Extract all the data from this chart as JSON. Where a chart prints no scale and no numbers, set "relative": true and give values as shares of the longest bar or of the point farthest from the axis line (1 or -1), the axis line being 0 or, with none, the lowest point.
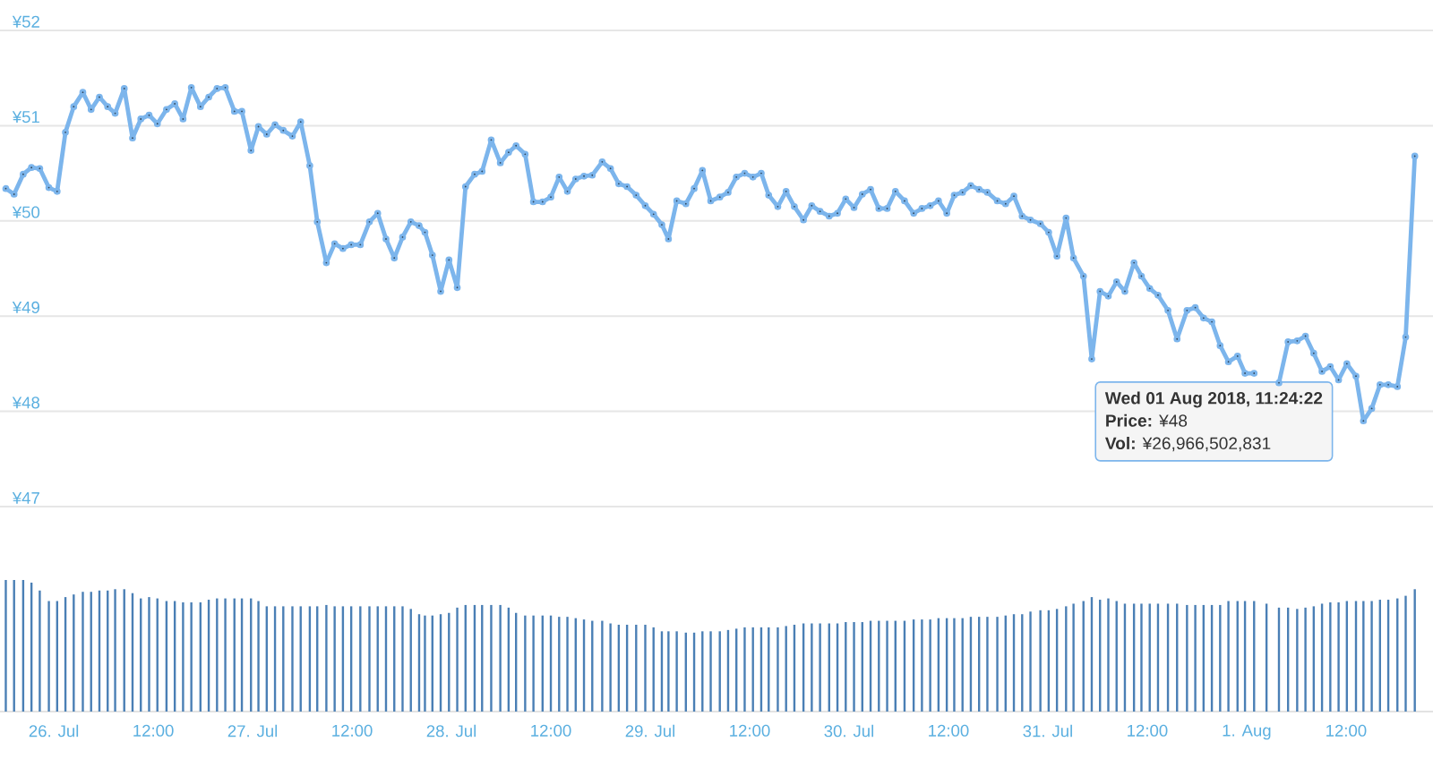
{
  "chart_data": [
    {
      "type": "line",
      "xlim": [
        "2018-07-25T17:30",
        "2018-08-01T22:30"
      ],
      "ylim": [
        47,
        52
      ],
      "yticks": [
        {
          "value": 47,
          "label": "¥47"
        },
        {
          "value": 48,
          "label": "¥48"
        },
        {
          "value": 49,
          "label": "¥49"
        },
        {
          "value": 50,
          "label": "¥50"
        },
        {
          "value": 51,
          "label": "¥51"
        },
        {
          "value": 52,
          "label": "¥52"
        }
      ],
      "grid": "y",
      "tick_labels": "y",
      "marker": "circle",
      "line_style": "solid",
      "annotations": [
        "Wed 01 Aug 2018, 11:24:22",
        "**Price:** ¥48",
        "**Vol:** ¥26,966,502,831"
      ],
      "series": [
        {
          "color": "#7cb5ec",
          "x": [
            "2018-07-25T18:12",
            "2018-07-25T19:12",
            "2018-07-25T20:18",
            "2018-07-25T21:18",
            "2018-07-25T22:18",
            "2018-07-25T23:24",
            "2018-07-26T00:24",
            "2018-07-26T01:24",
            "2018-07-26T02:24",
            "2018-07-26T03:30",
            "2018-07-26T04:30",
            "2018-07-26T05:30",
            "2018-07-26T06:30",
            "2018-07-26T07:24",
            "2018-07-26T08:30",
            "2018-07-26T09:30",
            "2018-07-26T10:30",
            "2018-07-26T11:30",
            "2018-07-26T12:30",
            "2018-07-26T13:36",
            "2018-07-26T14:36",
            "2018-07-26T15:36",
            "2018-07-26T16:36",
            "2018-07-26T17:42",
            "2018-07-26T18:42",
            "2018-07-26T19:42",
            "2018-07-26T20:42",
            "2018-07-26T21:48",
            "2018-07-26T22:42",
            "2018-07-26T23:48",
            "2018-07-27T00:42",
            "2018-07-27T01:42",
            "2018-07-27T02:42",
            "2018-07-27T03:42",
            "2018-07-27T04:48",
            "2018-07-27T05:48",
            "2018-07-27T06:54",
            "2018-07-27T07:48",
            "2018-07-27T08:54",
            "2018-07-27T09:54",
            "2018-07-27T10:54",
            "2018-07-27T11:54",
            "2018-07-27T13:00",
            "2018-07-27T14:06",
            "2018-07-27T15:06",
            "2018-07-27T16:06",
            "2018-07-27T17:06",
            "2018-07-27T18:06",
            "2018-07-27T19:06",
            "2018-07-27T20:06",
            "2018-07-27T20:48",
            "2018-07-27T21:42",
            "2018-07-27T22:42",
            "2018-07-27T23:42",
            "2018-07-28T00:42",
            "2018-07-28T01:42",
            "2018-07-28T02:48",
            "2018-07-28T03:42",
            "2018-07-28T04:48",
            "2018-07-28T05:54",
            "2018-07-28T06:54",
            "2018-07-28T07:48",
            "2018-07-28T08:54",
            "2018-07-28T09:54",
            "2018-07-28T11:00",
            "2018-07-28T12:00",
            "2018-07-28T13:00",
            "2018-07-28T14:00",
            "2018-07-28T15:00",
            "2018-07-28T16:00",
            "2018-07-28T17:00",
            "2018-07-28T18:12",
            "2018-07-28T19:12",
            "2018-07-28T20:12",
            "2018-07-28T21:12",
            "2018-07-28T22:18",
            "2018-07-28T23:24",
            "2018-07-29T00:24",
            "2018-07-29T01:24",
            "2018-07-29T02:12",
            "2018-07-29T03:12",
            "2018-07-29T04:18",
            "2018-07-29T05:18",
            "2018-07-29T06:18",
            "2018-07-29T07:18",
            "2018-07-29T08:24",
            "2018-07-29T09:24",
            "2018-07-29T10:24",
            "2018-07-29T11:24",
            "2018-07-29T12:24",
            "2018-07-29T13:24",
            "2018-07-29T14:18",
            "2018-07-29T15:24",
            "2018-07-29T16:24",
            "2018-07-29T17:24",
            "2018-07-29T18:30",
            "2018-07-29T19:30",
            "2018-07-29T20:30",
            "2018-07-29T21:36",
            "2018-07-29T22:36",
            "2018-07-29T23:36",
            "2018-07-30T00:36",
            "2018-07-30T01:36",
            "2018-07-30T02:36",
            "2018-07-30T03:36",
            "2018-07-30T04:36",
            "2018-07-30T05:36",
            "2018-07-30T06:42",
            "2018-07-30T07:48",
            "2018-07-30T08:48",
            "2018-07-30T09:48",
            "2018-07-30T10:48",
            "2018-07-30T11:48",
            "2018-07-30T12:42",
            "2018-07-30T13:42",
            "2018-07-30T14:42",
            "2018-07-30T15:42",
            "2018-07-30T16:42",
            "2018-07-30T17:54",
            "2018-07-30T18:54",
            "2018-07-30T19:54",
            "2018-07-30T20:54",
            "2018-07-30T21:54",
            "2018-07-30T23:06",
            "2018-07-31T00:06",
            "2018-07-31T01:06",
            "2018-07-31T02:12",
            "2018-07-31T03:06",
            "2018-07-31T04:18",
            "2018-07-31T05:18",
            "2018-07-31T06:18",
            "2018-07-31T07:18",
            "2018-07-31T08:18",
            "2018-07-31T09:18",
            "2018-07-31T10:24",
            "2018-07-31T11:18",
            "2018-07-31T12:18",
            "2018-07-31T13:18",
            "2018-07-31T14:30",
            "2018-07-31T15:36",
            "2018-07-31T16:48",
            "2018-07-31T17:48",
            "2018-07-31T18:48",
            "2018-07-31T19:48",
            "2018-07-31T20:48",
            "2018-07-31T21:48",
            "2018-07-31T22:54",
            "2018-07-31T23:48",
            "2018-08-01T00:54",
            "2018-08-01T02:24",
            "2018-08-01T03:54",
            "2018-08-01T05:00",
            "2018-08-01T06:06",
            "2018-08-01T07:06",
            "2018-08-01T08:06",
            "2018-08-01T09:06",
            "2018-08-01T10:06",
            "2018-08-01T11:06",
            "2018-08-01T12:06",
            "2018-08-01T13:12",
            "2018-08-01T14:06",
            "2018-08-01T15:06",
            "2018-08-01T16:06",
            "2018-08-01T17:06",
            "2018-08-01T18:12",
            "2018-08-01T19:12",
            "2018-08-01T20:18"
          ],
          "values": [
            50.34,
            50.28,
            50.49,
            50.56,
            50.55,
            50.35,
            50.31,
            50.93,
            51.2,
            51.35,
            51.17,
            51.3,
            51.2,
            51.13,
            51.39,
            50.87,
            51.07,
            51.11,
            51.02,
            51.17,
            51.23,
            51.07,
            51.4,
            51.2,
            51.3,
            51.39,
            51.4,
            51.15,
            51.15,
            50.74,
            50.99,
            50.91,
            51.01,
            50.95,
            50.89,
            51.04,
            50.58,
            49.99,
            49.56,
            49.76,
            49.71,
            49.75,
            49.75,
            49.99,
            50.08,
            49.81,
            49.61,
            49.83,
            49.99,
            49.95,
            49.88,
            49.64,
            49.26,
            49.59,
            49.3,
            50.36,
            50.49,
            50.52,
            50.85,
            50.61,
            50.72,
            50.79,
            50.7,
            50.2,
            50.2,
            50.25,
            50.46,
            50.31,
            50.44,
            50.47,
            50.48,
            50.62,
            50.55,
            50.39,
            50.36,
            50.27,
            50.16,
            50.07,
            49.96,
            49.81,
            50.21,
            50.18,
            50.34,
            50.53,
            50.21,
            50.25,
            50.3,
            50.46,
            50.5,
            50.46,
            50.5,
            50.27,
            50.15,
            50.31,
            50.15,
            50.01,
            50.16,
            50.1,
            50.05,
            50.08,
            50.23,
            50.14,
            50.28,
            50.33,
            50.13,
            50.13,
            50.31,
            50.21,
            50.08,
            50.13,
            50.16,
            50.21,
            50.08,
            50.27,
            50.3,
            50.37,
            50.33,
            50.3,
            50.21,
            50.18,
            50.26,
            50.05,
            50.01,
            49.97,
            49.88,
            49.63,
            50.03,
            49.61,
            49.42,
            48.55,
            49.26,
            49.21,
            49.36,
            49.26,
            49.56,
            49.42,
            49.29,
            49.22,
            49.06,
            48.76,
            49.06,
            49.09,
            48.98,
            48.94,
            48.69,
            48.52,
            48.58,
            48.4,
            48.4,
            null,
            48.3,
            48.73,
            48.74,
            48.79,
            48.61,
            48.42,
            48.47,
            48.33,
            48.5,
            48.37,
            47.9,
            48.03,
            48.28,
            48.28,
            48.26,
            48.78,
            50.68
          ]
        }
      ]
    },
    {
      "type": "bar",
      "relative": true,
      "xlim": [
        "2018-07-25T17:30",
        "2018-08-01T22:30"
      ],
      "xticks": [
        {
          "value": "2018-07-26",
          "label": "26. Jul"
        },
        {
          "value": "2018-07-26T12:00",
          "label": "12:00"
        },
        {
          "value": "2018-07-27",
          "label": "27. Jul"
        },
        {
          "value": "2018-07-27T12:00",
          "label": "12:00"
        },
        {
          "value": "2018-07-28",
          "label": "28. Jul"
        },
        {
          "value": "2018-07-28T12:00",
          "label": "12:00"
        },
        {
          "value": "2018-07-29",
          "label": "29. Jul"
        },
        {
          "value": "2018-07-29T12:00",
          "label": "12:00"
        },
        {
          "value": "2018-07-30",
          "label": "30. Jul"
        },
        {
          "value": "2018-07-30T12:00",
          "label": "12:00"
        },
        {
          "value": "2018-07-31",
          "label": "31. Jul"
        },
        {
          "value": "2018-07-31T12:00",
          "label": "12:00"
        },
        {
          "value": "2018-08-01",
          "label": "1. Aug"
        },
        {
          "value": "2018-08-01T12:00",
          "label": "12:00"
        }
      ],
      "tick_labels": "x",
      "series": [
        {
          "color": "#4a7fb5",
          "x": [
            "2018-07-25T18:12",
            "2018-07-25T19:12",
            "2018-07-25T20:18",
            "2018-07-25T21:18",
            "2018-07-25T22:18",
            "2018-07-25T23:24",
            "2018-07-26T00:24",
            "2018-07-26T01:24",
            "2018-07-26T02:24",
            "2018-07-26T03:30",
            "2018-07-26T04:30",
            "2018-07-26T05:30",
            "2018-07-26T06:30",
            "2018-07-26T07:24",
            "2018-07-26T08:30",
            "2018-07-26T09:30",
            "2018-07-26T10:30",
            "2018-07-26T11:30",
            "2018-07-26T12:30",
            "2018-07-26T13:36",
            "2018-07-26T14:36",
            "2018-07-26T15:36",
            "2018-07-26T16:36",
            "2018-07-26T17:42",
            "2018-07-26T18:42",
            "2018-07-26T19:42",
            "2018-07-26T20:42",
            "2018-07-26T21:48",
            "2018-07-26T22:42",
            "2018-07-26T23:48",
            "2018-07-27T00:42",
            "2018-07-27T01:42",
            "2018-07-27T02:42",
            "2018-07-27T03:42",
            "2018-07-27T04:48",
            "2018-07-27T05:48",
            "2018-07-27T06:54",
            "2018-07-27T07:48",
            "2018-07-27T08:54",
            "2018-07-27T09:54",
            "2018-07-27T10:54",
            "2018-07-27T11:54",
            "2018-07-27T13:00",
            "2018-07-27T14:06",
            "2018-07-27T15:06",
            "2018-07-27T16:06",
            "2018-07-27T17:06",
            "2018-07-27T18:06",
            "2018-07-27T19:06",
            "2018-07-27T20:06",
            "2018-07-27T20:48",
            "2018-07-27T21:42",
            "2018-07-27T22:42",
            "2018-07-27T23:42",
            "2018-07-28T00:42",
            "2018-07-28T01:42",
            "2018-07-28T02:48",
            "2018-07-28T03:42",
            "2018-07-28T04:48",
            "2018-07-28T05:54",
            "2018-07-28T06:54",
            "2018-07-28T07:48",
            "2018-07-28T08:54",
            "2018-07-28T09:54",
            "2018-07-28T11:00",
            "2018-07-28T12:00",
            "2018-07-28T13:00",
            "2018-07-28T14:00",
            "2018-07-28T15:00",
            "2018-07-28T16:00",
            "2018-07-28T17:00",
            "2018-07-28T18:12",
            "2018-07-28T19:12",
            "2018-07-28T20:12",
            "2018-07-28T21:12",
            "2018-07-28T22:18",
            "2018-07-28T23:24",
            "2018-07-29T00:24",
            "2018-07-29T01:24",
            "2018-07-29T02:12",
            "2018-07-29T03:12",
            "2018-07-29T04:18",
            "2018-07-29T05:18",
            "2018-07-29T06:18",
            "2018-07-29T07:18",
            "2018-07-29T08:24",
            "2018-07-29T09:24",
            "2018-07-29T10:24",
            "2018-07-29T11:24",
            "2018-07-29T12:24",
            "2018-07-29T13:24",
            "2018-07-29T14:18",
            "2018-07-29T15:24",
            "2018-07-29T16:24",
            "2018-07-29T17:24",
            "2018-07-29T18:30",
            "2018-07-29T19:30",
            "2018-07-29T20:30",
            "2018-07-29T21:36",
            "2018-07-29T22:36",
            "2018-07-29T23:36",
            "2018-07-30T00:36",
            "2018-07-30T01:36",
            "2018-07-30T02:36",
            "2018-07-30T03:36",
            "2018-07-30T04:36",
            "2018-07-30T05:36",
            "2018-07-30T06:42",
            "2018-07-30T07:48",
            "2018-07-30T08:48",
            "2018-07-30T09:48",
            "2018-07-30T10:48",
            "2018-07-30T11:48",
            "2018-07-30T12:42",
            "2018-07-30T13:42",
            "2018-07-30T14:42",
            "2018-07-30T15:42",
            "2018-07-30T16:42",
            "2018-07-30T17:54",
            "2018-07-30T18:54",
            "2018-07-30T19:54",
            "2018-07-30T20:54",
            "2018-07-30T21:54",
            "2018-07-30T23:06",
            "2018-07-31T00:06",
            "2018-07-31T01:06",
            "2018-07-31T02:12",
            "2018-07-31T03:06",
            "2018-07-31T04:18",
            "2018-07-31T05:18",
            "2018-07-31T06:18",
            "2018-07-31T07:18",
            "2018-07-31T08:18",
            "2018-07-31T09:18",
            "2018-07-31T10:24",
            "2018-07-31T11:18",
            "2018-07-31T12:18",
            "2018-07-31T13:18",
            "2018-07-31T14:30",
            "2018-07-31T15:36",
            "2018-07-31T16:48",
            "2018-07-31T17:48",
            "2018-07-31T18:48",
            "2018-07-31T19:48",
            "2018-07-31T20:48",
            "2018-07-31T21:48",
            "2018-07-31T22:54",
            "2018-07-31T23:48",
            "2018-08-01T00:54",
            "2018-08-01T02:24",
            "2018-08-01T03:54",
            "2018-08-01T05:00",
            "2018-08-01T06:06",
            "2018-08-01T07:06",
            "2018-08-01T08:06",
            "2018-08-01T09:06",
            "2018-08-01T10:06",
            "2018-08-01T11:06",
            "2018-08-01T12:06",
            "2018-08-01T13:12",
            "2018-08-01T14:06",
            "2018-08-01T15:06",
            "2018-08-01T16:06",
            "2018-08-01T17:06",
            "2018-08-01T18:12",
            "2018-08-01T19:12",
            "2018-08-01T20:18"
          ],
          "values": [
            1.0,
            1.0,
            1.0,
            0.98,
            0.92,
            0.84,
            0.84,
            0.87,
            0.89,
            0.91,
            0.91,
            0.92,
            0.92,
            0.93,
            0.93,
            0.9,
            0.86,
            0.87,
            0.86,
            0.84,
            0.84,
            0.83,
            0.83,
            0.83,
            0.85,
            0.86,
            0.86,
            0.86,
            0.86,
            0.86,
            0.84,
            0.8,
            0.8,
            0.8,
            0.8,
            0.8,
            0.8,
            0.8,
            0.81,
            0.8,
            0.8,
            0.8,
            0.8,
            0.8,
            0.8,
            0.8,
            0.8,
            0.8,
            0.78,
            0.74,
            0.73,
            0.73,
            0.74,
            0.75,
            0.79,
            0.81,
            0.81,
            0.81,
            0.81,
            0.81,
            0.79,
            0.75,
            0.73,
            0.73,
            0.73,
            0.73,
            0.72,
            0.72,
            0.71,
            0.7,
            0.69,
            0.69,
            0.67,
            0.66,
            0.66,
            0.66,
            0.66,
            0.64,
            0.61,
            0.61,
            0.61,
            0.6,
            0.6,
            0.61,
            0.61,
            0.61,
            0.62,
            0.63,
            0.64,
            0.64,
            0.64,
            0.64,
            0.64,
            0.65,
            0.66,
            0.67,
            0.67,
            0.67,
            0.67,
            0.67,
            0.68,
            0.68,
            0.68,
            0.69,
            0.69,
            0.69,
            0.69,
            0.69,
            0.7,
            0.7,
            0.7,
            0.71,
            0.71,
            0.71,
            0.71,
            0.72,
            0.72,
            0.72,
            0.72,
            0.73,
            0.74,
            0.74,
            0.76,
            0.77,
            0.77,
            0.78,
            0.8,
            0.82,
            0.84,
            0.87,
            0.85,
            0.86,
            0.84,
            0.82,
            0.82,
            0.82,
            0.82,
            0.82,
            0.82,
            0.82,
            0.81,
            0.81,
            0.81,
            0.81,
            0.81,
            0.84,
            0.84,
            0.84,
            0.84,
            0.82,
            0.79,
            0.79,
            0.78,
            0.79,
            0.8,
            0.82,
            0.83,
            0.83,
            0.84,
            0.84,
            0.84,
            0.84,
            0.85,
            0.85,
            0.86,
            0.88,
            0.93
          ]
        }
      ]
    }
  ]
}
